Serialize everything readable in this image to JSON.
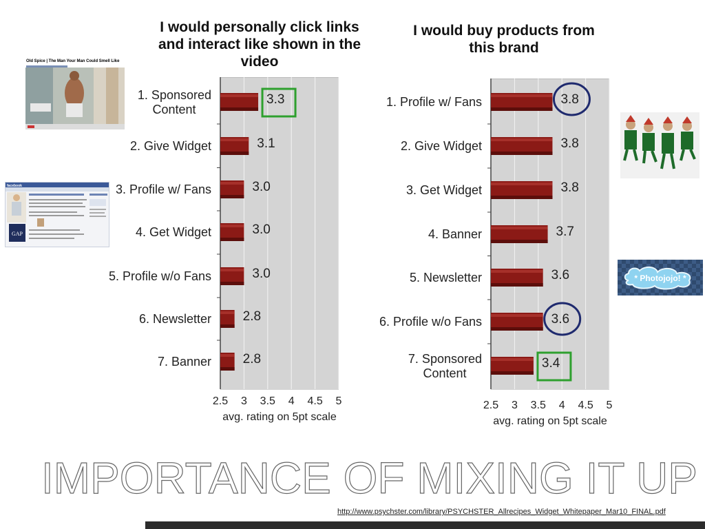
{
  "chart_data": [
    {
      "type": "bar",
      "orientation": "horizontal",
      "title": "I would personally click links and interact like shown in the video",
      "title_lines": [
        "I would personally click links",
        "and interact like shown in the",
        "video"
      ],
      "categories": [
        "1. Sponsored Content",
        "2. Give Widget",
        "3. Profile w/ Fans",
        "4. Get Widget",
        "5. Profile w/o Fans",
        "6. Newsletter",
        "7. Banner"
      ],
      "category_lines": [
        [
          "1. Sponsored",
          "Content"
        ],
        [
          "2. Give Widget"
        ],
        [
          "3. Profile w/ Fans"
        ],
        [
          "4. Get Widget"
        ],
        [
          "5. Profile w/o Fans"
        ],
        [
          "6. Newsletter"
        ],
        [
          "7. Banner"
        ]
      ],
      "values": [
        3.3,
        3.1,
        3.0,
        3.0,
        3.0,
        2.8,
        2.8
      ],
      "value_labels": [
        "3.3",
        "3.1",
        "3.0",
        "3.0",
        "3.0",
        "2.8",
        "2.8"
      ],
      "xlabel": "avg. rating on 5pt scale",
      "xlim": [
        2.5,
        5
      ],
      "xticks": [
        "2.5",
        "3",
        "3.5",
        "4",
        "4.5",
        "5"
      ],
      "highlights": [
        {
          "category": "1. Sponsored Content",
          "shape": "box",
          "color": "#2ea02e"
        }
      ],
      "bar_color": "#8b1a16",
      "background": "#d4d4d4",
      "grid": true
    },
    {
      "type": "bar",
      "orientation": "horizontal",
      "title": "I would buy products from this brand",
      "title_lines": [
        "I would buy products from",
        "this brand"
      ],
      "categories": [
        "1. Profile w/ Fans",
        "2. Give Widget",
        "3. Get Widget",
        "4. Banner",
        "5. Newsletter",
        "6. Profile w/o Fans",
        "7. Sponsored Content"
      ],
      "category_lines": [
        [
          "1. Profile w/ Fans"
        ],
        [
          "2. Give Widget"
        ],
        [
          "3. Get Widget"
        ],
        [
          "4. Banner"
        ],
        [
          "5. Newsletter"
        ],
        [
          "6. Profile w/o Fans"
        ],
        [
          "7. Sponsored",
          "Content"
        ]
      ],
      "values": [
        3.8,
        3.8,
        3.8,
        3.7,
        3.6,
        3.6,
        3.4
      ],
      "value_labels": [
        "3.8",
        "3.8",
        "3.8",
        "3.7",
        "3.6",
        "3.6",
        "3.4"
      ],
      "xlabel": "avg. rating on 5pt scale",
      "xlim": [
        2.5,
        5
      ],
      "xticks": [
        "2.5",
        "3",
        "3.5",
        "4",
        "4.5",
        "5"
      ],
      "highlights": [
        {
          "category": "1. Profile w/ Fans",
          "shape": "circle",
          "color": "#1f2a6e"
        },
        {
          "category": "6. Profile w/o Fans",
          "shape": "circle",
          "color": "#1f2a6e"
        },
        {
          "category": "7. Sponsored Content",
          "shape": "box",
          "color": "#2ea02e"
        }
      ],
      "bar_color": "#8b1a16",
      "background": "#d4d4d4",
      "grid": true
    }
  ],
  "thumbnails": {
    "oldspice": {
      "title": "Old Spice | The Man Your Man Could Smell Like"
    },
    "gap": {
      "brand": "GAP",
      "site": "facebook"
    },
    "elves": {},
    "photojojo": {
      "label": "* Photojojo! *"
    }
  },
  "slide": {
    "title": "IMPORTANCE OF MIXING IT UP",
    "source_url": "http://www.psychster.com/library/PSYCHSTER_Allrecipes_Widget_Whitepaper_Mar10_FINAL.pdf"
  }
}
